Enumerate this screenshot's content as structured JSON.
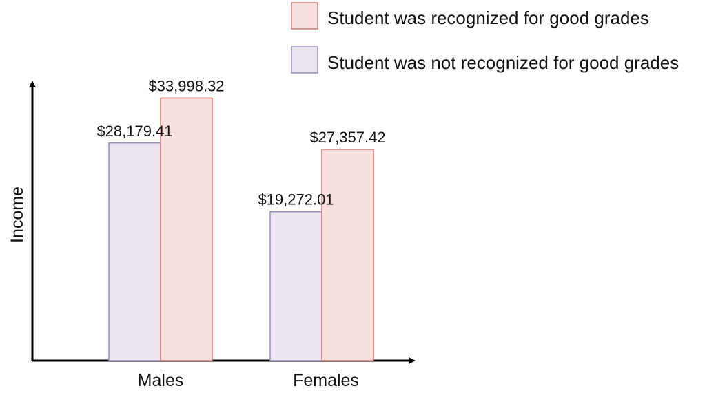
{
  "chart_data": {
    "type": "bar",
    "title": "",
    "xlabel": "",
    "ylabel": "Income",
    "categories": [
      "Males",
      "Females"
    ],
    "series": [
      {
        "name": "Student was not recognized for good grades",
        "values": [
          28179.41,
          19272.01
        ],
        "labels": [
          "$28,179.41",
          "$19,272.01"
        ],
        "fill": "#ebe5f1",
        "stroke": "#9c8cbd"
      },
      {
        "name": "Student was recognized for good grades",
        "values": [
          33998.32,
          27357.42
        ],
        "labels": [
          "$33,998.32",
          "$27,357.42"
        ],
        "fill": "#f6dfdd",
        "stroke": "#d07a74"
      }
    ],
    "legend": {
      "placement": "top-right",
      "order": [
        1,
        0
      ]
    },
    "ylim": [
      0,
      36000
    ],
    "grid": false,
    "axis_color": "#000000"
  }
}
